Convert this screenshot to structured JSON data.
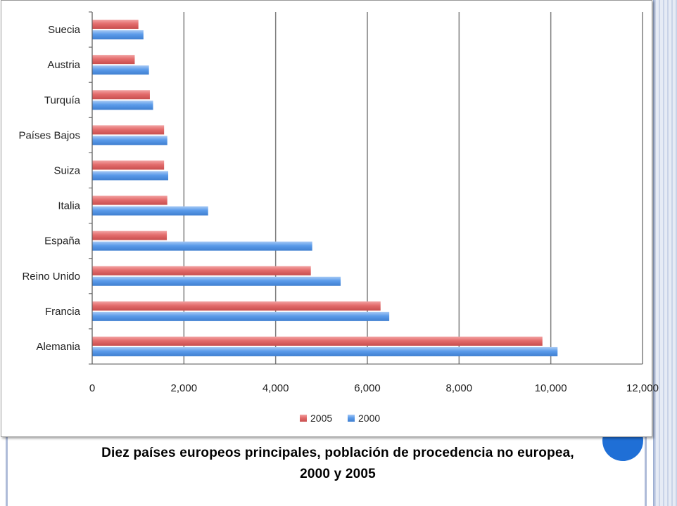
{
  "caption": {
    "line1": "Diez países europeos principales, población de procedencia no europea,",
    "line2": "2000 y 2005"
  },
  "colors": {
    "series_2005": "#e36c6c",
    "series_2000": "#5b9bea",
    "grid": "#7f7f7f",
    "deco_circle": "#1f6fd6"
  },
  "chart_data": {
    "type": "bar",
    "orientation": "horizontal",
    "categories": [
      "Suecia",
      "Austria",
      "Turquía",
      "Países Bajos",
      "Suiza",
      "Italia",
      "España",
      "Reino Unido",
      "Francia",
      "Alemania"
    ],
    "series": [
      {
        "name": "2005",
        "values": [
          1000,
          920,
          1250,
          1560,
          1560,
          1630,
          1620,
          4760,
          6280,
          9810
        ]
      },
      {
        "name": "2000",
        "values": [
          1110,
          1230,
          1320,
          1630,
          1650,
          2520,
          4790,
          5410,
          6470,
          10140
        ]
      }
    ],
    "xlim": [
      0,
      12000
    ],
    "ticks": [
      "0",
      "2,000",
      "4,000",
      "6,000",
      "8,000",
      "10,000",
      "12,000"
    ],
    "tick_values": [
      0,
      2000,
      4000,
      6000,
      8000,
      10000,
      12000
    ],
    "grid": true,
    "legend_position": "bottom"
  }
}
